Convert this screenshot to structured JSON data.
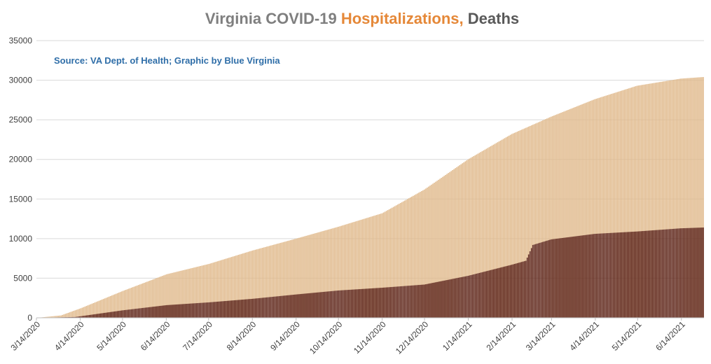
{
  "colors": {
    "title_part1": "#7f7f7f",
    "title_part2": "#e58838",
    "title_part3": "#595959",
    "hospitalizations": "#e0b98b",
    "deaths": "#5c2318",
    "source": "#2f6ea8",
    "grid": "#d9d9d9",
    "axis": "#bfbfbf"
  },
  "chart_data": {
    "type": "bar",
    "stacked": false,
    "overlapped": true,
    "title_parts": [
      "Virginia COVID-19 ",
      "Hospitalizations,",
      " Deaths"
    ],
    "source_note": "Source: VA Dept. of Health; Graphic by Blue Virginia",
    "x_range": [
      "3/14/2020",
      "6/30/2021"
    ],
    "x_tick_labels": [
      "3/14/2020",
      "4/14/2020",
      "5/14/2020",
      "6/14/2020",
      "7/14/2020",
      "8/14/2020",
      "9/14/2020",
      "10/14/2020",
      "11/14/2020",
      "12/14/2020",
      "1/14/2021",
      "2/14/2021",
      "3/14/2021",
      "4/14/2021",
      "5/14/2021",
      "6/14/2021"
    ],
    "y_ticks": [
      0,
      5000,
      10000,
      15000,
      20000,
      25000,
      30000,
      35000
    ],
    "ylim": [
      0,
      35000
    ],
    "grid": true,
    "legend": "none",
    "series": [
      {
        "key": "hospitalizations",
        "dates": [
          "3/14/2020",
          "3/31/2020",
          "4/14/2020",
          "5/14/2020",
          "6/14/2020",
          "7/14/2020",
          "8/14/2020",
          "9/14/2020",
          "10/14/2020",
          "11/14/2020",
          "12/14/2020",
          "1/14/2021",
          "2/14/2021",
          "3/14/2021",
          "4/14/2021",
          "5/14/2021",
          "6/14/2021",
          "6/30/2021"
        ],
        "values": [
          0,
          300,
          1200,
          3400,
          5500,
          6800,
          8500,
          10000,
          11500,
          13200,
          16200,
          20000,
          23200,
          25400,
          27600,
          29300,
          30200,
          30400
        ]
      },
      {
        "key": "deaths",
        "dates": [
          "3/14/2020",
          "4/10/2020",
          "4/14/2020",
          "5/14/2020",
          "6/14/2020",
          "7/14/2020",
          "8/14/2020",
          "9/14/2020",
          "10/14/2020",
          "11/14/2020",
          "12/14/2020",
          "1/14/2021",
          "2/14/2021",
          "2/24/2021",
          "3/1/2021",
          "3/14/2021",
          "4/14/2021",
          "5/14/2021",
          "6/14/2021",
          "6/30/2021"
        ],
        "values": [
          0,
          100,
          200,
          950,
          1600,
          1950,
          2400,
          2950,
          3450,
          3800,
          4200,
          5300,
          6700,
          7200,
          9200,
          9900,
          10600,
          10900,
          11300,
          11400
        ]
      }
    ]
  }
}
